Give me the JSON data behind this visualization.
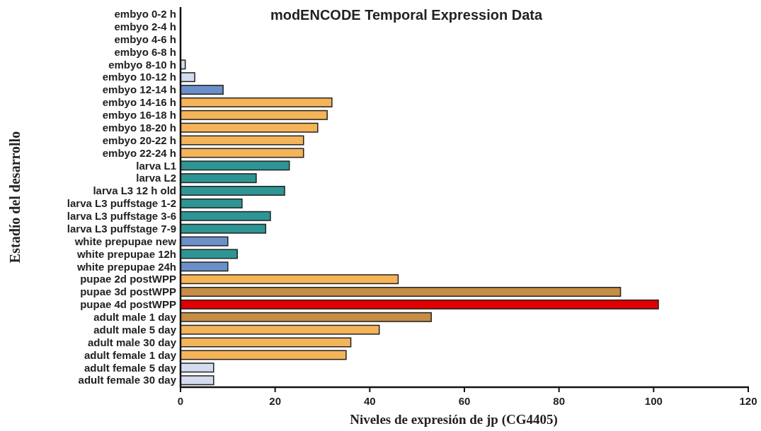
{
  "chart_data": {
    "type": "bar",
    "orientation": "horizontal",
    "title": "modENCODE Temporal Expression Data",
    "xlabel": "Niveles de expresión de jp (CG4405)",
    "ylabel": "Estadío del desarrollo",
    "categories": [
      "embyo 0-2 h",
      "embyo 2-4 h",
      "embyo 4-6 h",
      "embyo 6-8 h",
      "embyo 8-10 h",
      "embyo 10-12 h",
      "embyo 12-14 h",
      "embyo 14-16 h",
      "embyo 16-18 h",
      "embyo 18-20 h",
      "embyo 20-22 h",
      "embyo 22-24 h",
      "larva L1",
      "larva L2",
      "larva L3 12 h old",
      "larva L3 puffstage 1-2",
      "larva L3 puffstage 3-6",
      "larva L3 puffstage 7-9",
      "white prepupae new",
      "white prepupae 12h",
      "white prepupae 24h",
      "pupae 2d postWPP",
      "pupae 3d postWPP",
      "pupae 4d postWPP",
      "adult male 1 day",
      "adult male 5 day",
      "adult male 30 day",
      "adult female 1 day",
      "adult female 5 day",
      "adult female 30 day"
    ],
    "values": [
      0,
      0,
      0,
      0,
      1,
      3,
      9,
      32,
      31,
      29,
      26,
      26,
      23,
      16,
      22,
      13,
      19,
      18,
      10,
      12,
      10,
      46,
      93,
      101,
      53,
      42,
      36,
      35,
      7,
      7
    ],
    "colors": [
      "#d4dcef",
      "#d4dcef",
      "#d4dcef",
      "#d4dcef",
      "#d4dcef",
      "#d4dcef",
      "#6b8fc8",
      "#f5b458",
      "#f5b458",
      "#f5b458",
      "#f5b458",
      "#f5b458",
      "#2e9595",
      "#2e9595",
      "#2e9595",
      "#2e9595",
      "#2e9595",
      "#2e9595",
      "#6b8fc8",
      "#2e9595",
      "#6b8fc8",
      "#f5b458",
      "#c68d44",
      "#e00000",
      "#c68d44",
      "#f5b458",
      "#f5b458",
      "#f5b458",
      "#d4dcef",
      "#d4dcef"
    ],
    "xlim": [
      0,
      120
    ],
    "xticks": [
      0,
      20,
      40,
      60,
      80,
      100,
      120
    ]
  }
}
